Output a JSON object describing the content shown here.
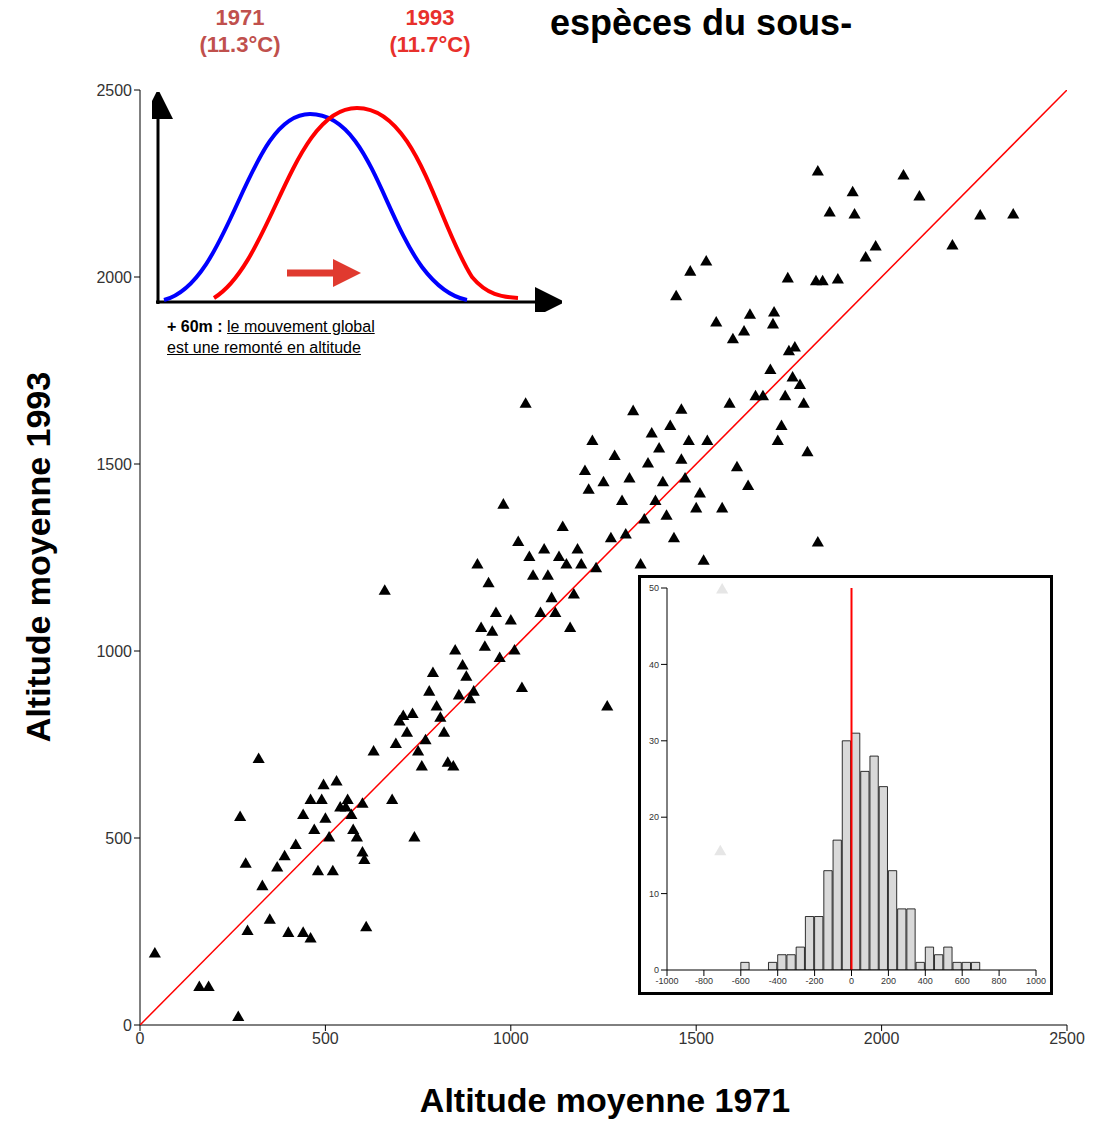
{
  "chart_data": [
    {
      "type": "scatter",
      "title": "espèces du sous-",
      "x_label": "Altitude moyenne 1971",
      "y_label": "Altitude moyenne 1993",
      "xlim": [
        0,
        2500
      ],
      "ylim": [
        0,
        2500
      ],
      "xticks": [
        0,
        500,
        1000,
        1500,
        2000,
        2500
      ],
      "yticks": [
        0,
        500,
        1000,
        1500,
        2000,
        2500
      ],
      "color": "#000000",
      "marker": "triangle",
      "x": [
        40,
        160,
        185,
        265,
        270,
        290,
        285,
        320,
        330,
        350,
        370,
        390,
        400,
        420,
        440,
        440,
        460,
        460,
        470,
        480,
        490,
        495,
        500,
        510,
        520,
        530,
        540,
        555,
        560,
        570,
        575,
        585,
        600,
        600,
        605,
        610,
        630,
        660,
        680,
        690,
        700,
        710,
        720,
        735,
        740,
        750,
        760,
        770,
        780,
        790,
        800,
        810,
        820,
        830,
        845,
        850,
        860,
        870,
        880,
        890,
        900,
        910,
        920,
        930,
        940,
        950,
        960,
        970,
        980,
        1000,
        1010,
        1020,
        1030,
        1040,
        1050,
        1060,
        1080,
        1090,
        1100,
        1110,
        1120,
        1130,
        1140,
        1150,
        1160,
        1170,
        1180,
        1190,
        1200,
        1210,
        1220,
        1230,
        1250,
        1260,
        1270,
        1280,
        1300,
        1310,
        1320,
        1330,
        1350,
        1360,
        1370,
        1380,
        1390,
        1400,
        1410,
        1420,
        1430,
        1440,
        1446,
        1460,
        1470,
        1480,
        1484,
        1500,
        1510,
        1520,
        1527,
        1530,
        1554,
        1570,
        1590,
        1599,
        1610,
        1629,
        1640,
        1645,
        1660,
        1680,
        1700,
        1707,
        1710,
        1720,
        1730,
        1740,
        1747,
        1760,
        1766,
        1780,
        1790,
        1800,
        1823,
        1828,
        1828,
        1841,
        1860,
        1882,
        1922,
        1927,
        1957,
        1984,
        2059,
        2102,
        2191,
        2266,
        2355,
        1460,
        1750,
        1570,
        1565
      ],
      "values": [
        190,
        100,
        100,
        20,
        555,
        250,
        430,
        710,
        370,
        280,
        420,
        450,
        245,
        480,
        245,
        560,
        230,
        600,
        520,
        410,
        600,
        640,
        550,
        500,
        410,
        650,
        580,
        580,
        600,
        560,
        520,
        500,
        590,
        460,
        440,
        260,
        730,
        1160,
        600,
        750,
        810,
        825,
        780,
        830,
        500,
        730,
        690,
        760,
        890,
        940,
        850,
        820,
        780,
        700,
        690,
        1000,
        880,
        960,
        930,
        870,
        890,
        1230,
        1060,
        1010,
        1180,
        1050,
        1100,
        980,
        1390,
        1080,
        1000,
        1290,
        900,
        1660,
        1250,
        1200,
        1100,
        1270,
        1200,
        1140,
        1100,
        1250,
        1330,
        1230,
        1060,
        1150,
        1270,
        1230,
        1480,
        1430,
        1560,
        1220,
        1450,
        850,
        1300,
        1520,
        1400,
        1310,
        1460,
        1640,
        1230,
        1350,
        1500,
        1580,
        1400,
        1540,
        1450,
        1360,
        1600,
        1300,
        1947,
        1510,
        1460,
        1560,
        2013,
        1380,
        1420,
        1240,
        2040,
        1560,
        1877,
        1380,
        1660,
        1832,
        1490,
        1853,
        1440,
        1898,
        1680,
        1680,
        1750,
        1872,
        1904,
        1560,
        1600,
        1680,
        1995,
        1730,
        1810,
        1710,
        1660,
        1530,
        1987,
        2281,
        1289,
        1987,
        2171,
        1992,
        2225,
        2166,
        2051,
        2080,
        2270,
        2214,
        2083,
        2163,
        2166,
        1644,
        1800,
        1163,
        463
      ],
      "reference_line": {
        "x": [
          0,
          2500
        ],
        "values": [
          0,
          2500
        ],
        "color": "#ff0000"
      },
      "annotation": {
        "lead": "+ 60m :",
        "text": [
          "le mouvement global",
          "est une remonté en altitude"
        ]
      },
      "distribution_sketch": [
        {
          "name": "1971",
          "label": "(11.3°C)",
          "color": "#0000ff"
        },
        {
          "name": "1993",
          "label": "(11.7°C)",
          "color": "#ff0000"
        }
      ]
    },
    {
      "type": "histogram",
      "bins": [
        -1000,
        -950,
        -900,
        -850,
        -800,
        -750,
        -700,
        -650,
        -600,
        -550,
        -500,
        -450,
        -400,
        -350,
        -300,
        -250,
        -200,
        -150,
        -100,
        -50,
        0,
        50,
        100,
        150,
        200,
        250,
        300,
        350,
        400,
        450,
        500,
        550,
        600,
        650,
        700,
        750,
        800,
        850,
        900,
        950,
        1000
      ],
      "counts": [
        0,
        0,
        0,
        0,
        0,
        0,
        0,
        0,
        1,
        0,
        0,
        1,
        2,
        2,
        3,
        7,
        7,
        13,
        17,
        30,
        31,
        26,
        28,
        24,
        13,
        8,
        8,
        1,
        3,
        2,
        3,
        1,
        1,
        1,
        0,
        0,
        0,
        0,
        0,
        0
      ],
      "color": "#d9d9d9",
      "xlim": [
        -1000,
        1000
      ],
      "xticks": [
        -1000,
        -800,
        -600,
        -400,
        -200,
        0,
        200,
        400,
        600,
        800,
        1000
      ],
      "ylim": [
        0,
        50
      ],
      "yticks": [
        0,
        10,
        20,
        30,
        40,
        50
      ],
      "reference_line": {
        "x": 0,
        "color": "#ff0000"
      }
    }
  ]
}
